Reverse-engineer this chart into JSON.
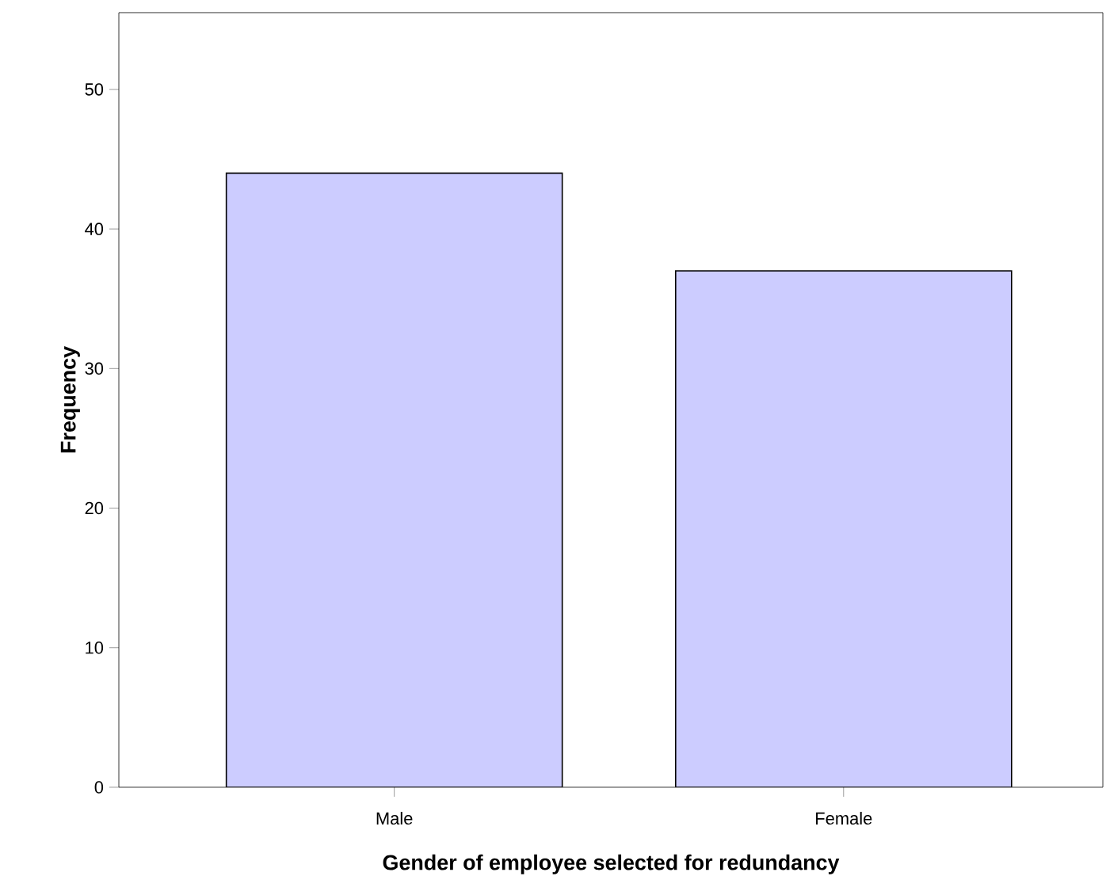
{
  "chart_data": {
    "type": "bar",
    "xlabel": "Gender of employee selected for redundancy",
    "ylabel": "Frequency",
    "categories": [
      "Male",
      "Female"
    ],
    "values": [
      44,
      37
    ],
    "color": "#ccccff",
    "ylim": [
      0,
      55.5
    ],
    "yticks": [
      0,
      10,
      20,
      30,
      40,
      50
    ],
    "grid": false
  }
}
